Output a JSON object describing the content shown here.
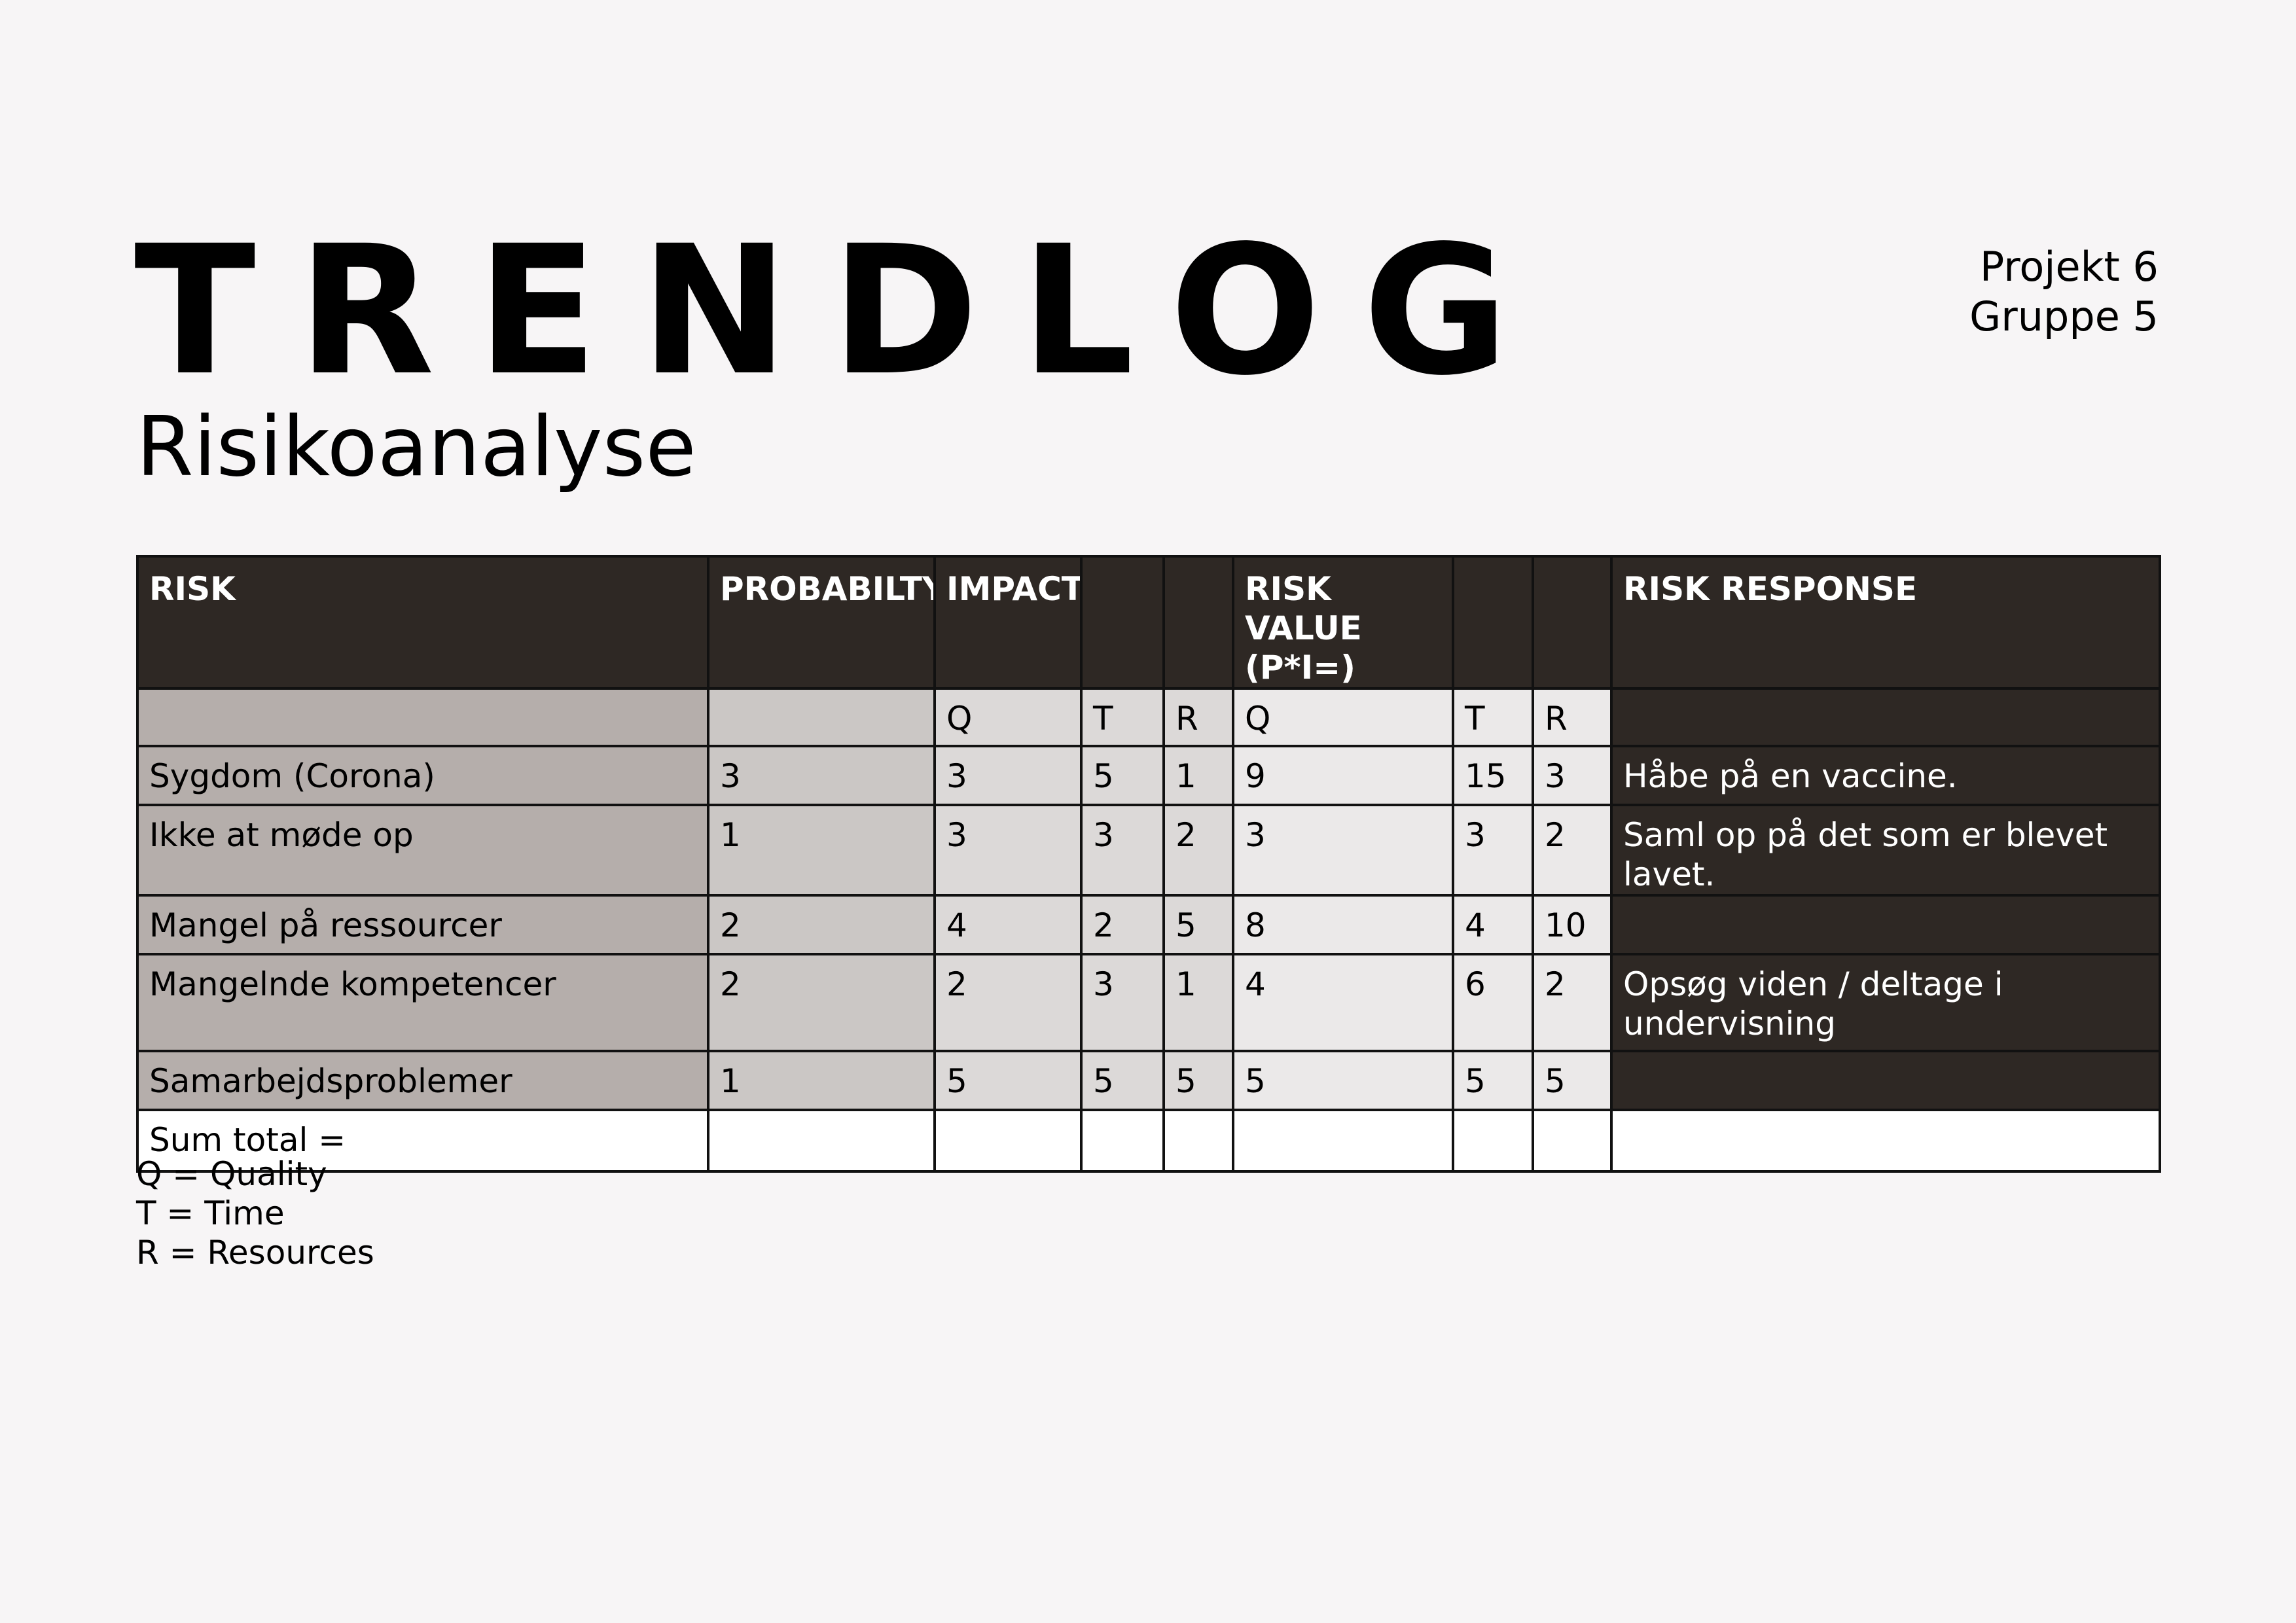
{
  "header": {
    "title": "TRENDLOG",
    "subtitle": "Risikoanalyse",
    "project": "Projekt 6",
    "group": "Gruppe 5"
  },
  "table": {
    "headers": {
      "risk": "RISK",
      "probability": "PROBABILTY",
      "impact": "IMPACT",
      "risk_value": "RISK VALUE (P*I=)",
      "risk_response": "RISK RESPONSE"
    },
    "sub_headers": {
      "impact_q": "Q",
      "impact_t": "T",
      "impact_r": "R",
      "value_q": "Q",
      "value_t": "T",
      "value_r": "R"
    },
    "rows": [
      {
        "risk": "Sygdom (Corona)",
        "p": "3",
        "iq": "3",
        "it": "5",
        "ir": "1",
        "vq": "9",
        "vt": "15",
        "vr": "3",
        "response": "Håbe på en vaccine."
      },
      {
        "risk": "Ikke at møde op",
        "p": "1",
        "iq": "3",
        "it": "3",
        "ir": "2",
        "vq": "3",
        "vt": "3",
        "vr": "2",
        "response": "Saml op på det som er blevet lavet."
      },
      {
        "risk": "Mangel på ressourcer",
        "p": "2",
        "iq": "4",
        "it": "2",
        "ir": "5",
        "vq": "8",
        "vt": "4",
        "vr": "10",
        "response": ""
      },
      {
        "risk": "Mangelnde kompetencer",
        "p": "2",
        "iq": "2",
        "it": "3",
        "ir": "1",
        "vq": "4",
        "vt": "6",
        "vr": "2",
        "response": "Opsøg viden / deltage i undervisning"
      },
      {
        "risk": "Samarbejdsproblemer",
        "p": "1",
        "iq": "5",
        "it": "5",
        "ir": "5",
        "vq": "5",
        "vt": "5",
        "vr": "5",
        "response": ""
      }
    ],
    "sum_label": "Sum total ="
  },
  "legend": {
    "q": "Q = Quality",
    "t": "T = Time",
    "r": "R = Resources"
  }
}
